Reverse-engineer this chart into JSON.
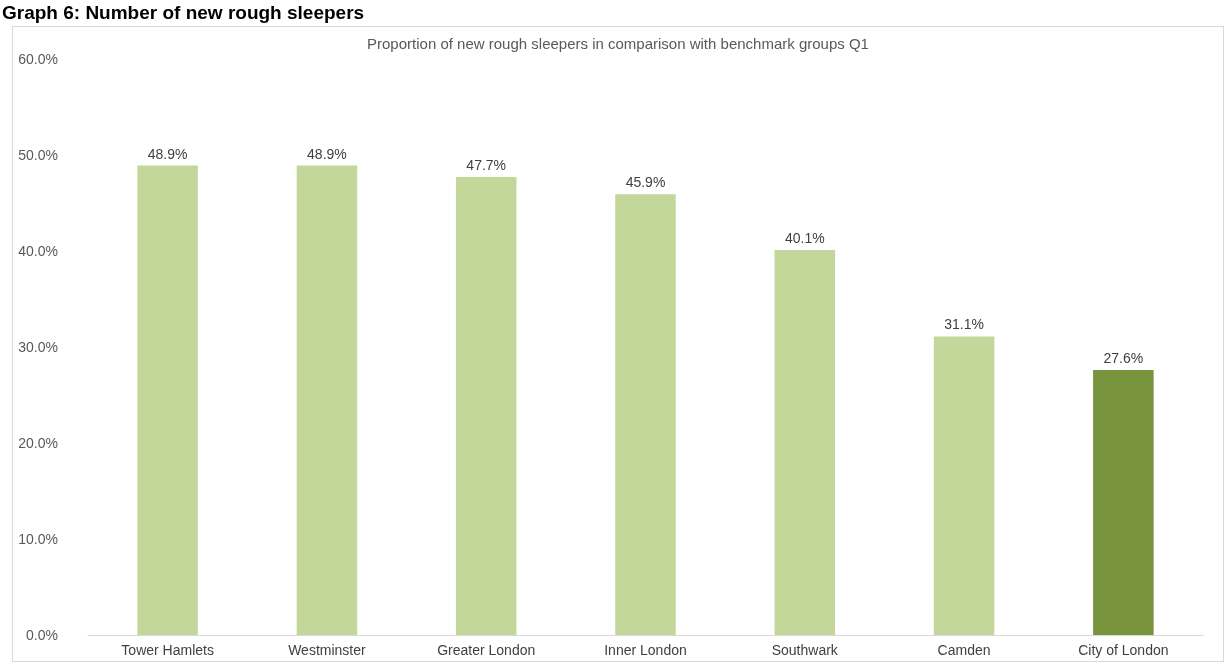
{
  "chart_data": {
    "type": "bar",
    "title": "Graph 6: Number of new rough sleepers",
    "subtitle": "Proportion of new rough sleepers in comparison with benchmark groups Q1",
    "categories": [
      "Tower Hamlets",
      "Westminster",
      "Greater London",
      "Inner London",
      "Southwark",
      "Camden",
      "City of London"
    ],
    "values": [
      48.9,
      48.9,
      47.7,
      45.9,
      40.1,
      31.1,
      27.6
    ],
    "colors": [
      "#c4d79b",
      "#c4d79b",
      "#c4d79b",
      "#c4d79b",
      "#c4d79b",
      "#c4d79b",
      "#77933c"
    ],
    "value_labels": [
      "48.9%",
      "48.9%",
      "47.7%",
      "45.9%",
      "40.1%",
      "31.1%",
      "27.6%"
    ],
    "ylim": [
      0,
      60
    ],
    "yticks": [
      {
        "value": 0,
        "label": "0.0%"
      },
      {
        "value": 10,
        "label": "10.0%"
      },
      {
        "value": 20,
        "label": "20.0%"
      },
      {
        "value": 30,
        "label": "30.0%"
      },
      {
        "value": 40,
        "label": "40.0%"
      },
      {
        "value": 50,
        "label": "50.0%"
      },
      {
        "value": 60,
        "label": "60.0%"
      }
    ],
    "grid": false
  }
}
